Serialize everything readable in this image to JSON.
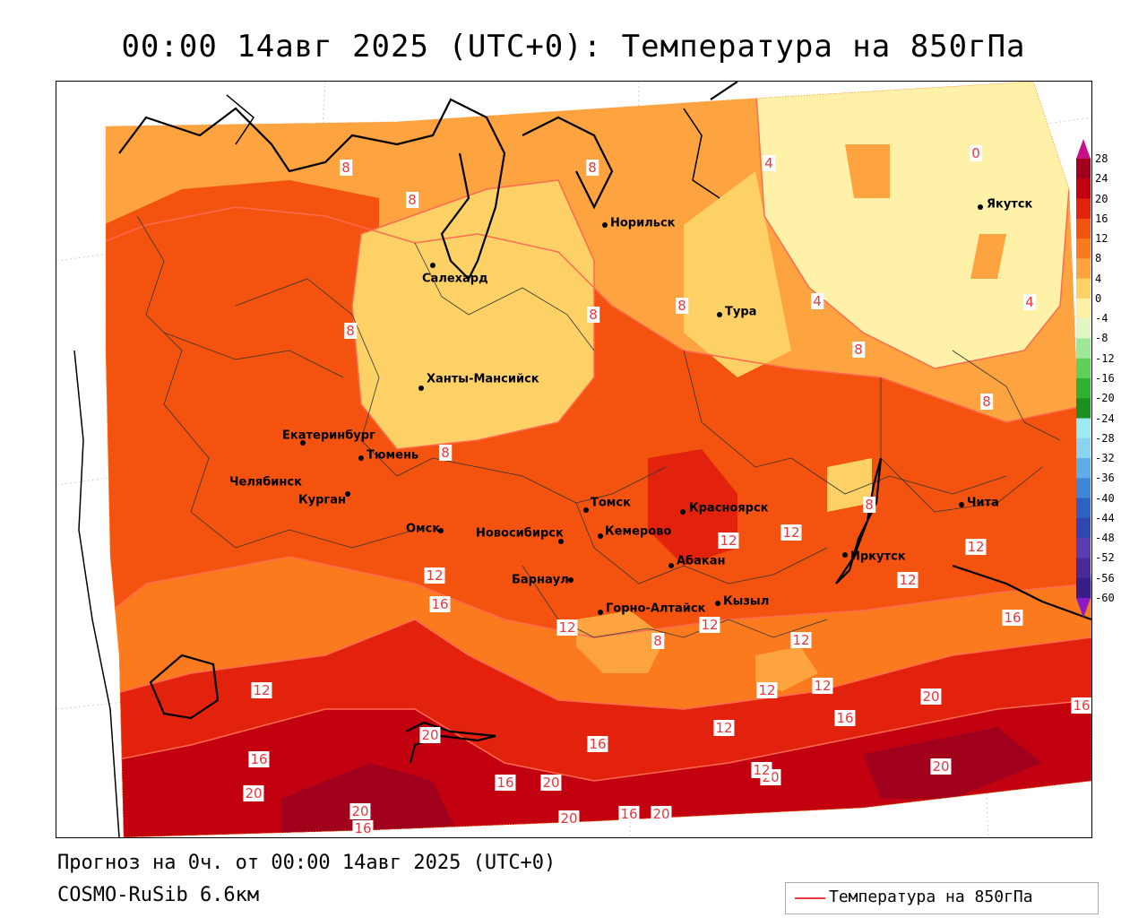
{
  "title": "00:00 14авг 2025 (UTC+0): Температура на 850гПа",
  "footer": {
    "forecast": "Прогноз на 0ч. от 00:00 14авг 2025 (UTC+0)",
    "model": "COSMO-RuSib 6.6км"
  },
  "legend": {
    "label": "Температура на 850гПа",
    "line_color": "#e8383d"
  },
  "colorbar": {
    "ticks": [
      "28",
      "24",
      "20",
      "16",
      "12",
      "8",
      "4",
      "0",
      "-4",
      "-8",
      "-12",
      "-16",
      "-20",
      "-24",
      "-28",
      "-32",
      "-36",
      "-40",
      "-44",
      "-48",
      "-52",
      "-56",
      "-60"
    ],
    "colors": [
      "#a1001d",
      "#c3000f",
      "#e2220c",
      "#f3530e",
      "#fb7a1d",
      "#fda33f",
      "#fed166",
      "#fff2a8",
      "#e3f7c6",
      "#9ee89a",
      "#5fcf5a",
      "#2fb030",
      "#1b8f21",
      "#9deaf0",
      "#8cd3f2",
      "#5dade9",
      "#3d86d8",
      "#2d61c4",
      "#3146b1",
      "#5a3db0",
      "#4a2a9a",
      "#3a1e88",
      "#2a0f75",
      "#1a0b5f"
    ],
    "top_arrow_color": "#c8108a",
    "bottom_arrow_color": "#8a1ac8"
  },
  "cities": [
    {
      "name": "Норильск"
    },
    {
      "name": "Якутск"
    },
    {
      "name": "Салехард"
    },
    {
      "name": "Тура"
    },
    {
      "name": "Ханты-Мансийск"
    },
    {
      "name": "Екатеринбург"
    },
    {
      "name": "Тюмень"
    },
    {
      "name": "Челябинск"
    },
    {
      "name": "Курган"
    },
    {
      "name": "Омск"
    },
    {
      "name": "Томск"
    },
    {
      "name": "Новосибирск"
    },
    {
      "name": "Кемерово"
    },
    {
      "name": "Красноярск"
    },
    {
      "name": "Абакан"
    },
    {
      "name": "Барнаул"
    },
    {
      "name": "Горно-Алтайск"
    },
    {
      "name": "Кызыл"
    },
    {
      "name": "Иркутск"
    },
    {
      "name": "Чита"
    }
  ],
  "contour_labels": [
    "8",
    "8",
    "8",
    "4",
    "0",
    "8",
    "8",
    "8",
    "4",
    "4",
    "8",
    "8",
    "8",
    "8",
    "12",
    "12",
    "12",
    "12",
    "12",
    "12",
    "16",
    "16",
    "12",
    "8",
    "12",
    "12",
    "12",
    "12",
    "12",
    "16",
    "20",
    "16",
    "16",
    "20",
    "20",
    "16",
    "20",
    "20",
    "20",
    "16",
    "20",
    "16",
    "20",
    "12",
    "20",
    "16"
  ]
}
